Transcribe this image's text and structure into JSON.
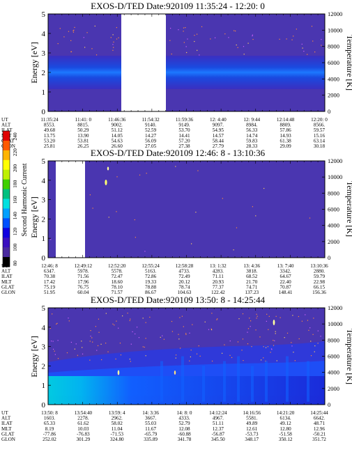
{
  "chart_data": [
    {
      "type": "heatmap",
      "title": "EXOS-D/TED   Date:920109  11:35:24 - 12:20: 0",
      "ylabel": "Energy [eV]",
      "ylabel_right": "Temperature [K]",
      "ylim": [
        0,
        5
      ],
      "yticks": [
        0,
        1,
        2,
        3,
        4,
        5
      ],
      "ylim_right": [
        0,
        12000
      ],
      "yticks_right": [
        0,
        2000,
        4000,
        6000,
        8000,
        10000,
        12000
      ],
      "data_gaps": [
        [
          0.36,
          0.5
        ]
      ],
      "energy_band_center_eV": 2.2,
      "table": {
        "row_labels": [
          "UT",
          "ALT",
          "ILAT",
          "MLT",
          "GLAT",
          "GLON"
        ],
        "columns": [
          [
            "11:35:24",
            "8553.",
            "49.68",
            "13.75",
            "53.20",
            "25.81"
          ],
          [
            "11:41: 0",
            "8815.",
            "50.29",
            "13.90",
            "53.81",
            "26.25"
          ],
          [
            "11:46:36",
            "9002.",
            "51.12",
            "14.05",
            "54.63",
            "26.60"
          ],
          [
            "11:54:32",
            "9140.",
            "52.59",
            "14.27",
            "56.09",
            "27.05"
          ],
          [
            "11:59:36",
            "9149.",
            "53.70",
            "14.41",
            "57.20",
            "27.38"
          ],
          [
            "12: 4:40",
            "9097.",
            "54.95",
            "14.57",
            "58.44",
            "27.79"
          ],
          [
            "12: 9:44",
            "8984.",
            "56.33",
            "14.74",
            "59.83",
            "28.33"
          ],
          [
            "12:14:48",
            "8809.",
            "57.86",
            "14.93",
            "61.38",
            "29.09"
          ],
          [
            "12:20: 0",
            "8566.",
            "59.57",
            "15.16",
            "63.14",
            "30.18"
          ]
        ]
      }
    },
    {
      "type": "heatmap",
      "title": "EXOS-D/TED   Date:920109  12:46: 8 - 13:10:36",
      "ylabel": "Energy [eV]",
      "ylabel_right": "Temperature [K]",
      "ylim": [
        0,
        5
      ],
      "yticks": [
        0,
        1,
        2,
        3,
        4,
        5
      ],
      "ylim_right": [
        0,
        12000
      ],
      "yticks_right": [
        0,
        2000,
        4000,
        6000,
        8000,
        10000,
        12000
      ],
      "data_gaps": [
        [
          0.0,
          0.11
        ]
      ],
      "table": {
        "row_labels": [
          "UT",
          "ALT",
          "ILAT",
          "MLT",
          "GLAT",
          "GLON"
        ],
        "columns": [
          [
            "12:46: 8",
            "6347.",
            "70.38",
            "17.42",
            "75.19",
            "51.95"
          ],
          [
            "12:49:12",
            "5978.",
            "71.56",
            "17.96",
            "76.75",
            "60.04"
          ],
          [
            "12:52:20",
            "5578.",
            "72.47",
            "18.60",
            "78.10",
            "71.57"
          ],
          [
            "12:55:24",
            "5163.",
            "72.86",
            "19.33",
            "78.88",
            "86.67"
          ],
          [
            "12:58:28",
            "4733.",
            "72.49",
            "20.12",
            "78.74",
            "104.63"
          ],
          [
            "13: 1:32",
            "4283.",
            "71.11",
            "20.93",
            "77.37",
            "122.42"
          ],
          [
            "13: 4:36",
            "3818.",
            "68.52",
            "21.70",
            "74.71",
            "137.23"
          ],
          [
            "13: 7:40",
            "3342.",
            "64.67",
            "22.40",
            "70.87",
            "148.41"
          ],
          [
            "13:10:36",
            "2880.",
            "59.79",
            "22.98",
            "66.15",
            "156.36"
          ]
        ]
      }
    },
    {
      "type": "heatmap",
      "title": "EXOS-D/TED   Date:920109  13:50: 8 - 14:25:44",
      "ylabel": "Energy [eV]",
      "ylabel_right": "Temperature [K]",
      "ylim": [
        0,
        5
      ],
      "yticks": [
        0,
        1,
        2,
        3,
        4,
        5
      ],
      "ylim_right": [
        0,
        12000
      ],
      "yticks_right": [
        0,
        2000,
        4000,
        6000,
        8000,
        10000,
        12000
      ],
      "data_gaps": [],
      "table": {
        "row_labels": [
          "UT",
          "ALT",
          "ILAT",
          "MLT",
          "GLAT",
          "GLON"
        ],
        "columns": [
          [
            "13:50: 8",
            "1603.",
            "65.33",
            "8.19",
            "-77.86",
            "252.02"
          ],
          [
            "13:54:40",
            "2278.",
            "61.62",
            "10.03",
            "-76.83",
            "301.29"
          ],
          [
            "13:59: 4",
            "2962.",
            "58.02",
            "11.04",
            "-71.53",
            "324.80"
          ],
          [
            "14: 3:36",
            "3667.",
            "55.03",
            "11.67",
            "-65.79",
            "335.89"
          ],
          [
            "14: 8: 0",
            "4333.",
            "52.79",
            "12.08",
            "-60.88",
            "341.78"
          ],
          [
            "14:12:24",
            "4967.",
            "51.11",
            "12.37",
            "-56.87",
            "345.50"
          ],
          [
            "14:16:56",
            "5581.",
            "49.89",
            "12.61",
            "-53.73",
            "348.17"
          ],
          [
            "14:21:20",
            "6134.",
            "49.12",
            "12.80",
            "-51.58",
            "350.12"
          ],
          [
            "14:25:44",
            "6642.",
            "48.71",
            "12.96",
            "-50.21",
            "351.72"
          ]
        ]
      }
    }
  ],
  "colorbar": {
    "label": "Second Harmonic Current",
    "ticks": [
      "240",
      "220",
      "200",
      "180",
      "160",
      "140",
      "120",
      "100",
      "80"
    ],
    "colors": [
      "#e00000",
      "#ff5a00",
      "#ffb400",
      "#ffff00",
      "#bff000",
      "#40d000",
      "#00c080",
      "#00e0e0",
      "#00a0ff",
      "#0050ff",
      "#1000e0",
      "#3a10c0",
      "#4a2aa0",
      "#000000"
    ]
  }
}
